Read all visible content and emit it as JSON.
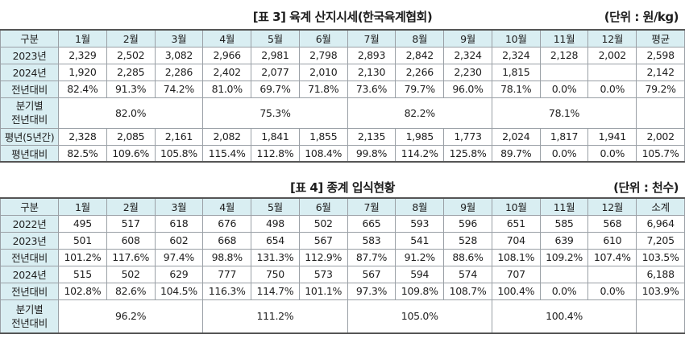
{
  "table3": {
    "title": "[표 3] 육계 산지시세(한국육계협회)",
    "unit": "(단위 : 원/kg)",
    "header": [
      "구분",
      "1월",
      "2월",
      "3월",
      "4월",
      "5월",
      "6월",
      "7월",
      "8월",
      "9월",
      "10월",
      "11월",
      "12월",
      "평균"
    ],
    "rows": [
      {
        "label": "2023년",
        "cells": [
          "2,329",
          "2,502",
          "3,082",
          "2,966",
          "2,981",
          "2,798",
          "2,893",
          "2,842",
          "2,324",
          "2,324",
          "2,128",
          "2,002",
          "2,598"
        ]
      },
      {
        "label": "2024년",
        "cells": [
          "1,920",
          "2,285",
          "2,286",
          "2,402",
          "2,077",
          "2,010",
          "2,130",
          "2,266",
          "2,230",
          "1,815",
          "",
          "",
          "2,142"
        ]
      },
      {
        "label": "전년대비",
        "cells": [
          "82.4%",
          "91.3%",
          "74.2%",
          "81.0%",
          "69.7%",
          "71.8%",
          "73.6%",
          "79.7%",
          "96.0%",
          "78.1%",
          "0.0%",
          "0.0%",
          "79.2%"
        ]
      }
    ],
    "quarter": {
      "label_line1": "분기별",
      "label_line2": "전년대비",
      "values": [
        "82.0%",
        "75.3%",
        "82.2%",
        "78.1%"
      ]
    },
    "rows2": [
      {
        "label": "평년(5년간)",
        "cells": [
          "2,328",
          "2,085",
          "2,161",
          "2,082",
          "1,841",
          "1,855",
          "2,135",
          "1,985",
          "1,773",
          "2,024",
          "1,817",
          "1,941",
          "2,002"
        ]
      },
      {
        "label": "평년대비",
        "cells": [
          "82.5%",
          "109.6%",
          "105.8%",
          "115.4%",
          "112.8%",
          "108.4%",
          "99.8%",
          "114.2%",
          "125.8%",
          "89.7%",
          "0.0%",
          "0.0%",
          "105.7%"
        ]
      }
    ]
  },
  "table4": {
    "title": "[표 4] 종계 입식현황",
    "unit": "(단위 : 천수)",
    "header": [
      "구분",
      "1월",
      "2월",
      "3월",
      "4월",
      "5월",
      "6월",
      "7월",
      "8월",
      "9월",
      "10월",
      "11월",
      "12월",
      "소계"
    ],
    "rows": [
      {
        "label": "2022년",
        "cells": [
          "495",
          "517",
          "618",
          "676",
          "498",
          "502",
          "665",
          "593",
          "596",
          "651",
          "585",
          "568",
          "6,964"
        ]
      },
      {
        "label": "2023년",
        "cells": [
          "501",
          "608",
          "602",
          "668",
          "654",
          "567",
          "583",
          "541",
          "528",
          "704",
          "639",
          "610",
          "7,205"
        ]
      },
      {
        "label": "전년대비",
        "cells": [
          "101.2%",
          "117.6%",
          "97.4%",
          "98.8%",
          "131.3%",
          "112.9%",
          "87.7%",
          "91.2%",
          "88.6%",
          "108.1%",
          "109.2%",
          "107.4%",
          "103.5%"
        ]
      },
      {
        "label": "2024년",
        "cells": [
          "515",
          "502",
          "629",
          "777",
          "750",
          "573",
          "567",
          "594",
          "574",
          "707",
          "",
          "",
          "6,188"
        ]
      },
      {
        "label": "전년대비",
        "cells": [
          "102.8%",
          "82.6%",
          "104.5%",
          "116.3%",
          "114.7%",
          "101.1%",
          "97.3%",
          "109.8%",
          "108.7%",
          "100.4%",
          "0.0%",
          "0.0%",
          "103.9%"
        ]
      }
    ],
    "quarter": {
      "label_line1": "분기별",
      "label_line2": "전년대비",
      "values": [
        "96.2%",
        "111.2%",
        "105.0%",
        "100.4%"
      ]
    }
  }
}
